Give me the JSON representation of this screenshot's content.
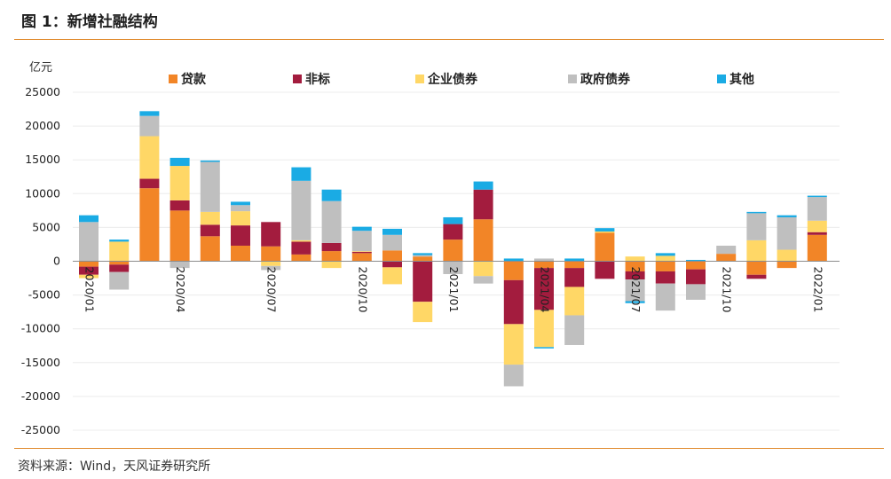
{
  "header": {
    "title": "图 1：新增社融结构"
  },
  "footer": {
    "source": "资料来源：Wind，天风证券研究所"
  },
  "chart_data": {
    "type": "bar",
    "stacked": true,
    "unit_label": "亿元",
    "ylim": [
      -25000,
      25000
    ],
    "yticks": [
      -25000,
      -20000,
      -15000,
      -10000,
      -5000,
      0,
      5000,
      10000,
      15000,
      20000,
      25000
    ],
    "legend_position": "top",
    "categories": [
      "2020/01",
      "2020/02",
      "2020/03",
      "2020/04",
      "2020/05",
      "2020/06",
      "2020/07",
      "2020/08",
      "2020/09",
      "2020/10",
      "2020/11",
      "2020/12",
      "2021/01",
      "2021/02",
      "2021/03",
      "2021/04",
      "2021/05",
      "2021/06",
      "2021/07",
      "2021/08",
      "2021/09",
      "2021/10",
      "2021/11",
      "2021/12",
      "2022/01",
      "2022/02"
    ],
    "tick_labels": [
      {
        "index": 0,
        "label": "2020/01"
      },
      {
        "index": 3,
        "label": "2020/04"
      },
      {
        "index": 6,
        "label": "2020/07"
      },
      {
        "index": 9,
        "label": "2020/10"
      },
      {
        "index": 12,
        "label": "2021/01"
      },
      {
        "index": 15,
        "label": "2021/04"
      },
      {
        "index": 18,
        "label": "2021/07"
      },
      {
        "index": 21,
        "label": "2021/10"
      },
      {
        "index": 24,
        "label": "2022/01"
      }
    ],
    "series": [
      {
        "name": "贷款",
        "color": "#F28527",
        "values": [
          -800,
          -500,
          10800,
          7500,
          3700,
          2300,
          2200,
          1000,
          1500,
          1200,
          1600,
          700,
          3200,
          6200,
          -2800,
          -1000,
          -1000,
          4200,
          -1500,
          -1500,
          -1200,
          1100,
          -2000,
          -1000,
          3900,
          0
        ]
      },
      {
        "name": "非标",
        "color": "#A31C3E",
        "values": [
          -1200,
          -1100,
          1400,
          1500,
          1700,
          3000,
          3600,
          1900,
          1200,
          200,
          -900,
          -6000,
          2300,
          4400,
          -6500,
          -6200,
          -2800,
          -2600,
          -1200,
          -1800,
          -2200,
          0,
          -600,
          0,
          400,
          0
        ]
      },
      {
        "name": "企业债券",
        "color": "#FFD766",
        "values": [
          -500,
          2900,
          6300,
          5100,
          1900,
          2100,
          -700,
          200,
          -1000,
          100,
          -2500,
          -3000,
          0,
          -2200,
          -6000,
          -5500,
          -4200,
          200,
          700,
          800,
          0,
          0,
          3100,
          1700,
          1700,
          0
        ]
      },
      {
        "name": "政府债券",
        "color": "#BFBFBF",
        "values": [
          5800,
          -2600,
          3000,
          -1000,
          7400,
          900,
          -600,
          8800,
          6200,
          3000,
          2300,
          200,
          -1900,
          -1100,
          -3200,
          400,
          -4400,
          0,
          -3200,
          -4000,
          -2300,
          1200,
          4000,
          4800,
          3500,
          0
        ]
      },
      {
        "name": "其他",
        "color": "#1AABE4",
        "values": [
          1000,
          300,
          700,
          1200,
          200,
          500,
          0,
          2000,
          1700,
          600,
          900,
          300,
          1000,
          1200,
          400,
          -200,
          400,
          500,
          -300,
          400,
          200,
          0,
          200,
          300,
          200,
          0
        ]
      }
    ]
  }
}
